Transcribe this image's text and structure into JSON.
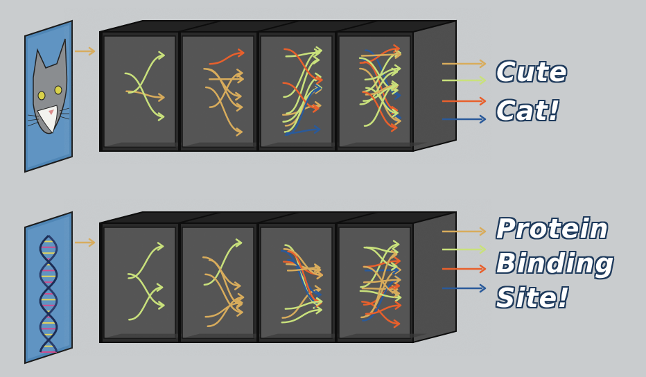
{
  "colors": {
    "background": "#c9ccce",
    "box_dark": "#2b2b2b",
    "panel": "#5a5a5a",
    "arrow_tan": "#d8ac5c",
    "arrow_green": "#c9e17c",
    "arrow_orange": "#e8602c",
    "arrow_blue": "#2a5a9a",
    "label_text": "#ffffff",
    "label_outline": "#1e3a5c"
  },
  "rows": [
    {
      "input_image": "cat-face-icon",
      "output_lines": [
        "Cute",
        "Cat!"
      ]
    },
    {
      "input_image": "dna-helix-icon",
      "output_lines": [
        "Protein",
        "Binding",
        "Site!"
      ]
    }
  ]
}
